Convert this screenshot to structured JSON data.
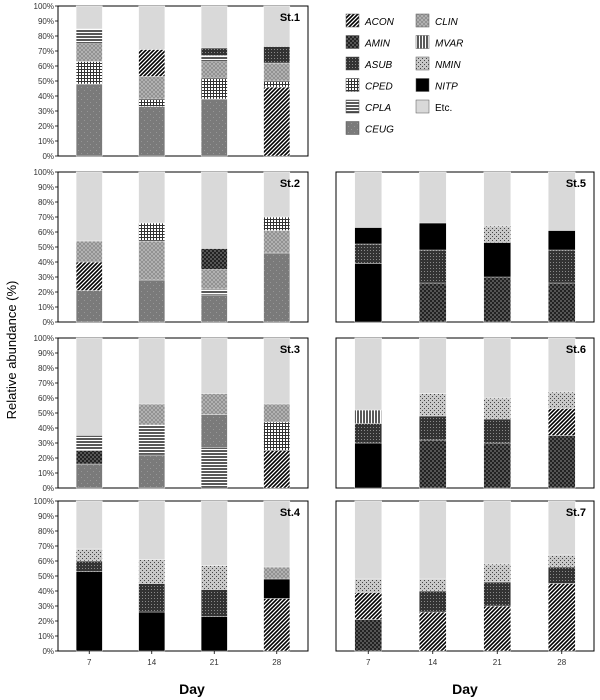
{
  "figure": {
    "y_axis_label": "Relative abundance (%)",
    "x_axis_label": "Day"
  },
  "legend": {
    "entries": [
      {
        "key": "ACON",
        "label": "ACON",
        "pattern": "diag-dense"
      },
      {
        "key": "AMIN",
        "label": "AMIN",
        "pattern": "check"
      },
      {
        "key": "ASUB",
        "label": "ASUB",
        "pattern": "dots-dark"
      },
      {
        "key": "CPED",
        "label": "CPED",
        "pattern": "grid"
      },
      {
        "key": "CPLA",
        "label": "CPLA",
        "pattern": "hlines"
      },
      {
        "key": "CEUG",
        "label": "CEUG",
        "pattern": "gray"
      },
      {
        "key": "CLIN",
        "label": "CLIN",
        "pattern": "crosshatch"
      },
      {
        "key": "MVAR",
        "label": "MVAR",
        "pattern": "vlines"
      },
      {
        "key": "NMIN",
        "label": "NMIN",
        "pattern": "stipple"
      },
      {
        "key": "NITP",
        "label": "NITP",
        "pattern": "black"
      },
      {
        "key": "Etc",
        "label": "Etc.",
        "pattern": "light"
      }
    ]
  },
  "chart_data": [
    {
      "type": "bar",
      "stacked": true,
      "title": "St.1",
      "categories": [
        "7",
        "14",
        "21",
        "28"
      ],
      "show_x_ticks": false,
      "ylim": [
        0,
        100
      ],
      "yticks": [
        "0%",
        "10%",
        "20%",
        "30%",
        "40%",
        "50%",
        "60%",
        "70%",
        "80%",
        "90%",
        "100%"
      ],
      "series": [
        {
          "name": "CEUG",
          "values": [
            48,
            33,
            38,
            0
          ]
        },
        {
          "name": "ACON",
          "values": [
            0,
            0,
            0,
            46
          ]
        },
        {
          "name": "CPED",
          "values": [
            15,
            5,
            14,
            4
          ]
        },
        {
          "name": "CLIN",
          "values": [
            12,
            15,
            11,
            12
          ]
        },
        {
          "name": "CPLA",
          "values": [
            10,
            0,
            4,
            0
          ]
        },
        {
          "name": "ACON",
          "values": [
            0,
            18,
            0,
            0
          ]
        },
        {
          "name": "ASUB",
          "values": [
            0,
            0,
            5,
            11
          ]
        },
        {
          "name": "Etc.",
          "values": [
            15,
            29,
            28,
            27
          ]
        }
      ]
    },
    {
      "type": "bar",
      "stacked": true,
      "title": "St.2",
      "categories": [
        "7",
        "14",
        "21",
        "28"
      ],
      "show_x_ticks": false,
      "ylim": [
        0,
        100
      ],
      "yticks": [
        "0%",
        "10%",
        "20%",
        "30%",
        "40%",
        "50%",
        "60%",
        "70%",
        "80%",
        "90%",
        "100%"
      ],
      "series": [
        {
          "name": "CEUG",
          "values": [
            21,
            28,
            18,
            46
          ]
        },
        {
          "name": "ACON",
          "values": [
            19,
            0,
            0,
            0
          ]
        },
        {
          "name": "CPLA",
          "values": [
            0,
            0,
            4,
            0
          ]
        },
        {
          "name": "CLIN",
          "values": [
            14,
            26,
            13,
            15
          ]
        },
        {
          "name": "CPED",
          "values": [
            0,
            12,
            0,
            9
          ]
        },
        {
          "name": "AMIN",
          "values": [
            0,
            0,
            14,
            0
          ]
        },
        {
          "name": "Etc.",
          "values": [
            46,
            34,
            51,
            30
          ]
        }
      ]
    },
    {
      "type": "bar",
      "stacked": true,
      "title": "St.3",
      "categories": [
        "7",
        "14",
        "21",
        "28"
      ],
      "show_x_ticks": false,
      "ylim": [
        0,
        100
      ],
      "yticks": [
        "0%",
        "10%",
        "20%",
        "30%",
        "40%",
        "50%",
        "60%",
        "70%",
        "80%",
        "90%",
        "100%"
      ],
      "series": [
        {
          "name": "CEUG",
          "values": [
            16,
            22,
            0,
            0
          ]
        },
        {
          "name": "CPLA",
          "values": [
            0,
            0,
            27,
            0
          ]
        },
        {
          "name": "ACON",
          "values": [
            0,
            0,
            0,
            25
          ]
        },
        {
          "name": "AMIN",
          "values": [
            9,
            0,
            0,
            0
          ]
        },
        {
          "name": "CPED",
          "values": [
            0,
            0,
            0,
            19
          ]
        },
        {
          "name": "CPLA",
          "values": [
            10,
            20,
            0,
            0
          ]
        },
        {
          "name": "CEUG",
          "values": [
            0,
            0,
            22,
            0
          ]
        },
        {
          "name": "CLIN",
          "values": [
            0,
            14,
            14,
            12
          ]
        },
        {
          "name": "Etc.",
          "values": [
            65,
            44,
            37,
            44
          ]
        }
      ]
    },
    {
      "type": "bar",
      "stacked": true,
      "title": "St.4",
      "categories": [
        "7",
        "14",
        "21",
        "28"
      ],
      "show_x_ticks": true,
      "ylim": [
        0,
        100
      ],
      "yticks": [
        "0%",
        "10%",
        "20%",
        "30%",
        "40%",
        "50%",
        "60%",
        "70%",
        "80%",
        "90%",
        "100%"
      ],
      "series": [
        {
          "name": "NITP",
          "values": [
            53,
            26,
            23,
            0
          ]
        },
        {
          "name": "ACON",
          "values": [
            0,
            0,
            0,
            35
          ]
        },
        {
          "name": "NITP",
          "values": [
            0,
            0,
            0,
            13
          ]
        },
        {
          "name": "ASUB",
          "values": [
            7,
            19,
            18,
            0
          ]
        },
        {
          "name": "NMIN",
          "values": [
            8,
            16,
            16,
            0
          ]
        },
        {
          "name": "CLIN",
          "values": [
            0,
            0,
            0,
            8
          ]
        },
        {
          "name": "Etc.",
          "values": [
            32,
            39,
            43,
            44
          ]
        }
      ]
    },
    {
      "type": "bar",
      "stacked": true,
      "title": "St.5",
      "categories": [
        "7",
        "14",
        "21",
        "28"
      ],
      "show_x_ticks": false,
      "ylim": [
        0,
        100
      ],
      "yticks": [],
      "series": [
        {
          "name": "NITP",
          "values": [
            39,
            0,
            0,
            0
          ]
        },
        {
          "name": "AMIN",
          "values": [
            0,
            26,
            30,
            26
          ]
        },
        {
          "name": "ASUB",
          "values": [
            13,
            22,
            0,
            22
          ]
        },
        {
          "name": "NITP",
          "values": [
            11,
            18,
            23,
            13
          ]
        },
        {
          "name": "NMIN",
          "values": [
            0,
            0,
            11,
            0
          ]
        },
        {
          "name": "Etc.",
          "values": [
            37,
            34,
            36,
            39
          ]
        }
      ]
    },
    {
      "type": "bar",
      "stacked": true,
      "title": "St.6",
      "categories": [
        "7",
        "14",
        "21",
        "28"
      ],
      "show_x_ticks": false,
      "ylim": [
        0,
        100
      ],
      "yticks": [],
      "series": [
        {
          "name": "NITP",
          "values": [
            30,
            0,
            0,
            0
          ]
        },
        {
          "name": "AMIN",
          "values": [
            0,
            32,
            30,
            35
          ]
        },
        {
          "name": "ASUB",
          "values": [
            13,
            16,
            16,
            0
          ]
        },
        {
          "name": "ACON",
          "values": [
            0,
            0,
            0,
            18
          ]
        },
        {
          "name": "MVAR",
          "values": [
            9,
            0,
            0,
            0
          ]
        },
        {
          "name": "NMIN",
          "values": [
            0,
            15,
            14,
            11
          ]
        },
        {
          "name": "Etc.",
          "values": [
            48,
            37,
            40,
            36
          ]
        }
      ]
    },
    {
      "type": "bar",
      "stacked": true,
      "title": "St.7",
      "categories": [
        "7",
        "14",
        "21",
        "28"
      ],
      "show_x_ticks": true,
      "ylim": [
        0,
        100
      ],
      "yticks": [],
      "series": [
        {
          "name": "AMIN",
          "values": [
            21,
            0,
            0,
            0
          ]
        },
        {
          "name": "ACON",
          "values": [
            18,
            26,
            30,
            45
          ]
        },
        {
          "name": "ASUB",
          "values": [
            0,
            14,
            16,
            11
          ]
        },
        {
          "name": "NMIN",
          "values": [
            9,
            8,
            12,
            8
          ]
        },
        {
          "name": "Etc.",
          "values": [
            52,
            52,
            42,
            36
          ]
        }
      ]
    }
  ]
}
